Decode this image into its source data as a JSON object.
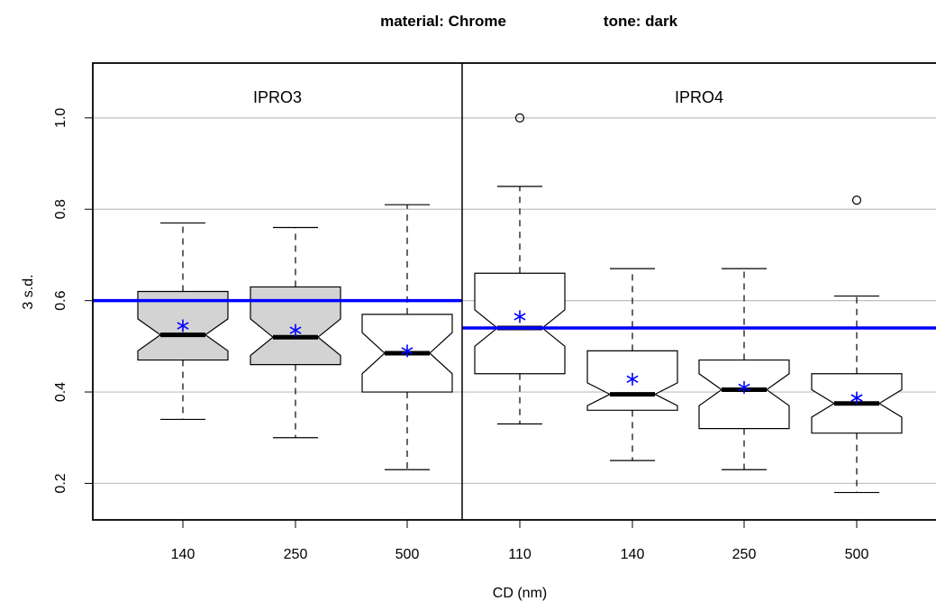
{
  "chart_data": {
    "type": "box",
    "title_parts": [
      {
        "label": "material: Chrome"
      },
      {
        "label": "tone: dark"
      }
    ],
    "xlabel": "CD (nm)",
    "ylabel": "3 s.d.",
    "ylim": [
      0.12,
      1.12
    ],
    "yticks": [
      "0.2",
      "0.4",
      "0.6",
      "0.8",
      "1.0"
    ],
    "ytick_values": [
      0.2,
      0.4,
      0.6,
      0.8,
      1.0
    ],
    "grid": true,
    "colors": {
      "highlight_fill": "#d3d3d3",
      "mean_marker": "#0000ff",
      "reference_line": "#0000ff",
      "grid": "#bebebe"
    },
    "panels": [
      {
        "name": "IPRO3",
        "reference_line": 0.6,
        "boxes": [
          {
            "cd": "140",
            "min": 0.34,
            "q1": 0.47,
            "median": 0.525,
            "q3": 0.62,
            "max": 0.77,
            "mean": 0.545,
            "notch_low": 0.49,
            "notch_high": 0.56,
            "outliers": [],
            "highlight": true
          },
          {
            "cd": "250",
            "min": 0.3,
            "q1": 0.46,
            "median": 0.52,
            "q3": 0.63,
            "max": 0.76,
            "mean": 0.535,
            "notch_low": 0.48,
            "notch_high": 0.56,
            "outliers": [],
            "highlight": true
          },
          {
            "cd": "500",
            "min": 0.23,
            "q1": 0.4,
            "median": 0.485,
            "q3": 0.57,
            "max": 0.81,
            "mean": 0.49,
            "notch_low": 0.44,
            "notch_high": 0.53,
            "outliers": [],
            "highlight": false
          }
        ]
      },
      {
        "name": "IPRO4",
        "reference_line": 0.54,
        "boxes": [
          {
            "cd": "110",
            "min": 0.33,
            "q1": 0.44,
            "median": 0.54,
            "q3": 0.66,
            "max": 0.85,
            "mean": 0.565,
            "notch_low": 0.5,
            "notch_high": 0.58,
            "outliers": [
              1.0
            ],
            "highlight": false
          },
          {
            "cd": "140",
            "min": 0.25,
            "q1": 0.36,
            "median": 0.395,
            "q3": 0.49,
            "max": 0.67,
            "mean": 0.428,
            "notch_low": 0.37,
            "notch_high": 0.42,
            "outliers": [],
            "highlight": false
          },
          {
            "cd": "250",
            "min": 0.23,
            "q1": 0.32,
            "median": 0.405,
            "q3": 0.47,
            "max": 0.67,
            "mean": 0.41,
            "notch_low": 0.37,
            "notch_high": 0.44,
            "outliers": [],
            "highlight": false
          },
          {
            "cd": "500",
            "min": 0.18,
            "q1": 0.31,
            "median": 0.375,
            "q3": 0.44,
            "max": 0.61,
            "mean": 0.387,
            "notch_low": 0.345,
            "notch_high": 0.405,
            "outliers": [
              0.82
            ],
            "highlight": false
          }
        ]
      }
    ]
  }
}
